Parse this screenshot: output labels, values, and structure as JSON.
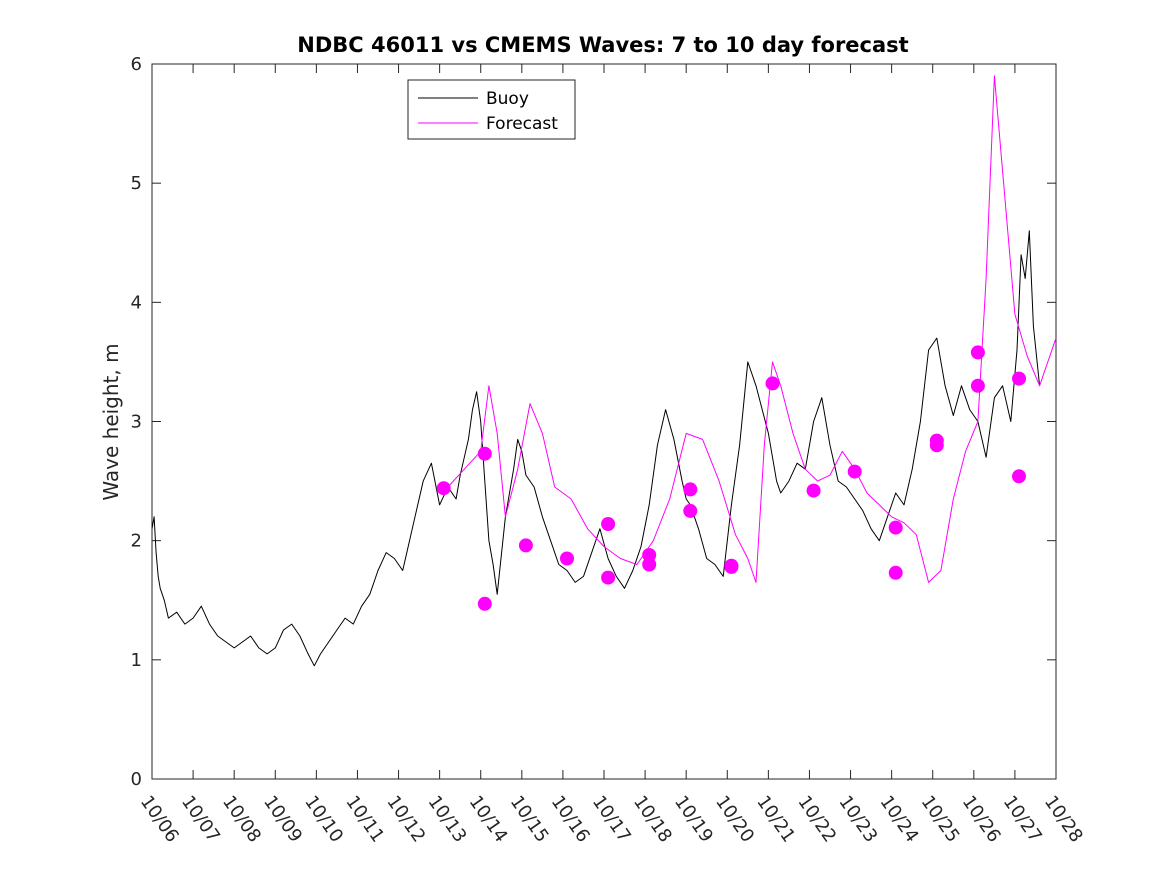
{
  "chart_data": {
    "type": "line",
    "title": "NDBC 46011 vs CMEMS Waves: 7 to 10 day forecast",
    "xlabel": "",
    "ylabel": "Wave height, m",
    "xlim": [
      0,
      22
    ],
    "ylim": [
      0,
      6
    ],
    "y_ticks": [
      "0",
      "1",
      "2",
      "3",
      "4",
      "5",
      "6"
    ],
    "x_tick_labels": [
      "10/06",
      "10/07",
      "10/08",
      "10/09",
      "10/10",
      "10/11",
      "10/12",
      "10/13",
      "10/14",
      "10/15",
      "10/16",
      "10/17",
      "10/18",
      "10/19",
      "10/20",
      "10/21",
      "10/22",
      "10/23",
      "10/24",
      "10/25",
      "10/26",
      "10/27",
      "10/28"
    ],
    "legend": {
      "position": "top-left",
      "entries": [
        {
          "label": "Buoy",
          "color": "#000000"
        },
        {
          "label": "Forecast",
          "color": "#ff00ff"
        }
      ]
    },
    "series": [
      {
        "name": "Buoy",
        "color": "#000000",
        "x": [
          0,
          0.05,
          0.1,
          0.15,
          0.2,
          0.3,
          0.4,
          0.6,
          0.8,
          1.0,
          1.2,
          1.4,
          1.6,
          1.8,
          2.0,
          2.2,
          2.4,
          2.6,
          2.8,
          3.0,
          3.2,
          3.4,
          3.6,
          3.8,
          3.95,
          4.1,
          4.3,
          4.5,
          4.7,
          4.9,
          5.1,
          5.3,
          5.5,
          5.7,
          5.9,
          6.1,
          6.2,
          6.4,
          6.6,
          6.8,
          7.0,
          7.2,
          7.4,
          7.5,
          7.6,
          7.7,
          7.8,
          7.9,
          8.0,
          8.1,
          8.2,
          8.3,
          8.4,
          8.6,
          8.8,
          8.9,
          9.0,
          9.1,
          9.3,
          9.5,
          9.7,
          9.9,
          10.1,
          10.3,
          10.5,
          10.7,
          10.9,
          11.1,
          11.3,
          11.5,
          11.7,
          11.9,
          12.1,
          12.3,
          12.5,
          12.7,
          12.9,
          13.0,
          13.1,
          13.3,
          13.5,
          13.7,
          13.9,
          14.1,
          14.3,
          14.5,
          14.7,
          14.85,
          15.0,
          15.1,
          15.2,
          15.3,
          15.5,
          15.7,
          15.9,
          16.1,
          16.3,
          16.5,
          16.7,
          16.9,
          17.1,
          17.3,
          17.5,
          17.7,
          17.9,
          18.1,
          18.3,
          18.5,
          18.7,
          18.9,
          19.1,
          19.3,
          19.5,
          19.7,
          19.9,
          20.1,
          20.3,
          20.5,
          20.7,
          20.9,
          21.05,
          21.15,
          21.25,
          21.35,
          21.45,
          21.6
        ],
        "values": [
          2.1,
          2.2,
          1.9,
          1.7,
          1.6,
          1.5,
          1.35,
          1.4,
          1.3,
          1.35,
          1.45,
          1.3,
          1.2,
          1.15,
          1.1,
          1.15,
          1.2,
          1.1,
          1.05,
          1.1,
          1.25,
          1.3,
          1.2,
          1.05,
          0.95,
          1.05,
          1.15,
          1.25,
          1.35,
          1.3,
          1.45,
          1.55,
          1.75,
          1.9,
          1.85,
          1.75,
          1.9,
          2.2,
          2.5,
          2.65,
          2.3,
          2.45,
          2.35,
          2.55,
          2.7,
          2.85,
          3.1,
          3.25,
          3.0,
          2.5,
          2.0,
          1.8,
          1.55,
          2.2,
          2.6,
          2.85,
          2.75,
          2.55,
          2.45,
          2.2,
          2.0,
          1.8,
          1.75,
          1.65,
          1.7,
          1.9,
          2.1,
          1.85,
          1.7,
          1.6,
          1.75,
          1.95,
          2.3,
          2.8,
          3.1,
          2.85,
          2.5,
          2.35,
          2.3,
          2.1,
          1.85,
          1.8,
          1.7,
          2.3,
          2.8,
          3.5,
          3.3,
          3.1,
          2.9,
          2.7,
          2.5,
          2.4,
          2.5,
          2.65,
          2.6,
          3.0,
          3.2,
          2.8,
          2.5,
          2.45,
          2.35,
          2.25,
          2.1,
          2.0,
          2.2,
          2.4,
          2.3,
          2.6,
          3.0,
          3.6,
          3.7,
          3.3,
          3.05,
          3.3,
          3.1,
          3.0,
          2.7,
          3.2,
          3.3,
          3.0,
          3.6,
          4.4,
          4.2,
          4.6,
          3.8,
          3.3
        ]
      },
      {
        "name": "Forecast",
        "color": "#ff00ff",
        "x": [
          7.2,
          7.6,
          8.0,
          8.2,
          8.4,
          8.6,
          8.9,
          9.2,
          9.5,
          9.8,
          10.2,
          10.6,
          11.0,
          11.4,
          11.8,
          12.2,
          12.6,
          13.0,
          13.4,
          13.8,
          14.2,
          14.5,
          14.7,
          14.9,
          15.1,
          15.3,
          15.6,
          15.9,
          16.2,
          16.5,
          16.8,
          17.1,
          17.4,
          17.7,
          18.0,
          18.3,
          18.6,
          18.9,
          19.2,
          19.5,
          19.8,
          20.1,
          20.3,
          20.5,
          20.7,
          21.0,
          21.3,
          21.6,
          22.0
        ],
        "values": [
          2.45,
          2.6,
          2.75,
          3.3,
          2.9,
          2.2,
          2.6,
          3.15,
          2.9,
          2.45,
          2.35,
          2.1,
          1.95,
          1.85,
          1.8,
          2.0,
          2.35,
          2.9,
          2.85,
          2.5,
          2.05,
          1.85,
          1.65,
          2.8,
          3.5,
          3.3,
          2.9,
          2.6,
          2.5,
          2.55,
          2.75,
          2.6,
          2.4,
          2.3,
          2.2,
          2.15,
          2.05,
          1.65,
          1.75,
          2.35,
          2.75,
          3.0,
          4.2,
          5.9,
          5.1,
          3.9,
          3.55,
          3.3,
          3.7
        ]
      }
    ],
    "forecast_points": {
      "color": "#ff00ff",
      "x": [
        7.1,
        8.1,
        8.1,
        9.1,
        10.1,
        11.1,
        11.1,
        12.1,
        12.1,
        13.1,
        13.1,
        14.1,
        14.1,
        15.1,
        16.1,
        17.1,
        18.1,
        18.1,
        19.1,
        19.1,
        20.1,
        20.1,
        21.1,
        21.1
      ],
      "values": [
        2.44,
        2.73,
        1.47,
        1.96,
        1.85,
        2.14,
        1.69,
        1.88,
        1.8,
        2.43,
        2.25,
        1.79,
        1.78,
        3.32,
        2.42,
        2.58,
        2.11,
        1.73,
        2.84,
        2.8,
        3.58,
        3.3,
        3.36,
        2.54
      ]
    }
  }
}
